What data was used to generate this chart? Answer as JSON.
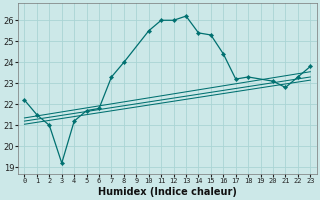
{
  "xlabel": "Humidex (Indice chaleur)",
  "bg_color": "#cce8e8",
  "grid_color": "#aad4d4",
  "line_color": "#007070",
  "xlim": [
    -0.5,
    23.5
  ],
  "ylim": [
    18.7,
    26.8
  ],
  "yticks": [
    19,
    20,
    21,
    22,
    23,
    24,
    25,
    26
  ],
  "xticks": [
    0,
    1,
    2,
    3,
    4,
    5,
    6,
    7,
    8,
    9,
    10,
    11,
    12,
    13,
    14,
    15,
    16,
    17,
    18,
    19,
    20,
    21,
    22,
    23
  ],
  "curve1_x": [
    0,
    1,
    2,
    3,
    4,
    5,
    6,
    7,
    8,
    10,
    11,
    12,
    13,
    14,
    15,
    16,
    17,
    18,
    20,
    21,
    22,
    23
  ],
  "curve1_y": [
    22.2,
    21.5,
    21.0,
    19.2,
    21.2,
    21.7,
    21.8,
    23.3,
    24.0,
    25.5,
    26.0,
    26.0,
    26.2,
    25.4,
    25.3,
    24.4,
    23.2,
    23.3,
    23.1,
    22.8,
    23.3,
    23.8
  ],
  "line2_x": [
    0,
    23
  ],
  "line2_y": [
    21.05,
    23.15
  ],
  "line3_x": [
    0,
    23
  ],
  "line3_y": [
    21.2,
    23.3
  ],
  "line4_x": [
    0,
    23
  ],
  "line4_y": [
    21.35,
    23.55
  ]
}
